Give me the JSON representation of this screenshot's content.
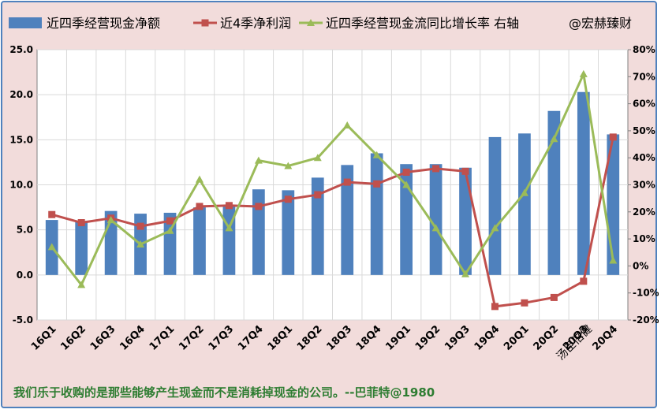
{
  "chart_data": {
    "type": "bar+line",
    "categories": [
      "16Q1",
      "16Q2",
      "16Q3",
      "16Q4",
      "17Q1",
      "17Q2",
      "17Q3",
      "17Q4",
      "18Q1",
      "18Q2",
      "18Q3",
      "18Q4",
      "19Q1",
      "19Q2",
      "19Q3",
      "19Q4",
      "20Q1",
      "20Q2",
      "20Q3",
      "20Q4"
    ],
    "series": [
      {
        "name": "近四季经营现金净额",
        "kind": "bar",
        "axis": "left",
        "color": "#4f81bd",
        "values": [
          6.1,
          6.0,
          7.1,
          6.8,
          6.9,
          7.5,
          7.8,
          9.5,
          9.4,
          10.8,
          12.2,
          13.5,
          12.3,
          12.3,
          11.9,
          15.3,
          15.7,
          18.2,
          20.3,
          15.6
        ]
      },
      {
        "name": "近4季净利润",
        "kind": "line",
        "axis": "left",
        "color": "#c0504d",
        "values": [
          6.7,
          5.8,
          6.3,
          5.4,
          6.0,
          7.6,
          7.7,
          7.6,
          8.4,
          8.9,
          10.3,
          10.1,
          11.4,
          11.8,
          11.5,
          -3.5,
          -3.1,
          -2.5,
          -0.7,
          15.3
        ]
      },
      {
        "name": "近四季经营现金流同比增长率 右轴",
        "kind": "line",
        "axis": "right",
        "color": "#9bbb59",
        "values": [
          0.07,
          -0.07,
          0.17,
          0.08,
          0.13,
          0.32,
          0.14,
          0.39,
          0.37,
          0.4,
          0.52,
          0.41,
          0.3,
          0.14,
          -0.03,
          0.14,
          0.27,
          0.47,
          0.71,
          0.02
        ]
      }
    ],
    "y_left": {
      "min": -5,
      "max": 25,
      "step": 5,
      "tick_labels": [
        "-5.0",
        "0.0",
        "5.0",
        "10.0",
        "15.0",
        "20.0",
        "25.0"
      ]
    },
    "y_right": {
      "min": -0.2,
      "max": 0.8,
      "step": 0.1,
      "tick_labels": [
        "-20%",
        "-10%",
        "0%",
        "10%",
        "20%",
        "30%",
        "40%",
        "50%",
        "60%",
        "70%",
        "80%"
      ]
    },
    "grid": true,
    "legend_position": "top",
    "legend_extra": "@宏赫臻财",
    "watermark": "汤臣倍健"
  },
  "quote": "我们乐于收购的是那些能够产生现金而不是消耗掉现金的公司。--巴菲特@1980"
}
